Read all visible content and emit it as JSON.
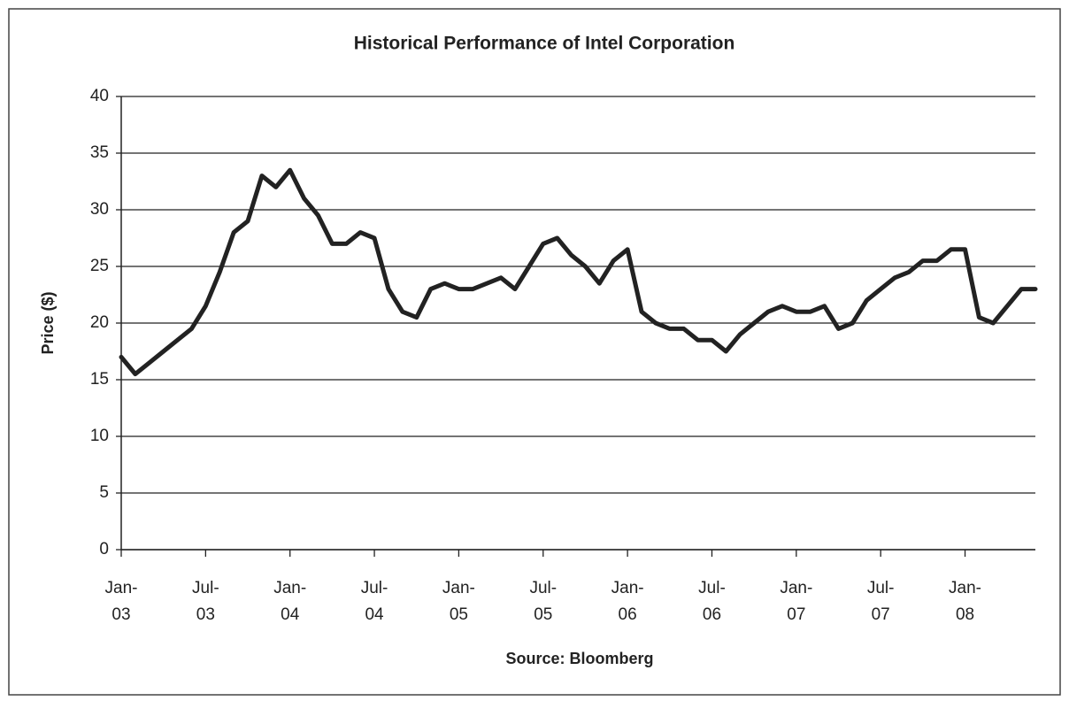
{
  "chart_data": {
    "type": "line",
    "title": "Historical Performance of Intel Corporation",
    "y_label": "Price ($)",
    "x_label": "Source: Bloomberg",
    "x": [
      "2003-01",
      "2003-02",
      "2003-03",
      "2003-04",
      "2003-05",
      "2003-06",
      "2003-07",
      "2003-08",
      "2003-09",
      "2003-10",
      "2003-11",
      "2003-12",
      "2004-01",
      "2004-02",
      "2004-03",
      "2004-04",
      "2004-05",
      "2004-06",
      "2004-07",
      "2004-08",
      "2004-09",
      "2004-10",
      "2004-11",
      "2004-12",
      "2005-01",
      "2005-02",
      "2005-03",
      "2005-04",
      "2005-05",
      "2005-06",
      "2005-07",
      "2005-08",
      "2005-09",
      "2005-10",
      "2005-11",
      "2005-12",
      "2006-01",
      "2006-02",
      "2006-03",
      "2006-04",
      "2006-05",
      "2006-06",
      "2006-07",
      "2006-08",
      "2006-09",
      "2006-10",
      "2006-11",
      "2006-12",
      "2007-01",
      "2007-02",
      "2007-03",
      "2007-04",
      "2007-05",
      "2007-06",
      "2007-07",
      "2007-08",
      "2007-09",
      "2007-10",
      "2007-11",
      "2007-12",
      "2008-01",
      "2008-02",
      "2008-03",
      "2008-04",
      "2008-05",
      "2008-06"
    ],
    "series": [
      {
        "name": "Intel",
        "color": "#222222",
        "values": [
          17,
          15.5,
          16.5,
          17.5,
          18.5,
          19.5,
          21.5,
          24.5,
          28,
          29,
          33,
          32,
          33.5,
          31,
          29.5,
          27,
          27,
          28,
          27.5,
          23,
          21,
          20.5,
          23,
          23.5,
          23,
          23,
          23.5,
          24,
          23,
          25,
          27,
          27.5,
          26,
          25,
          23.5,
          25.5,
          26.5,
          21,
          20,
          19.5,
          19.5,
          18.5,
          18.5,
          17.5,
          19,
          20,
          21,
          21.5,
          21,
          21,
          21.5,
          19.5,
          20,
          22,
          23,
          24,
          24.5,
          25.5,
          25.5,
          26.5,
          26.5,
          20.5,
          20,
          21.5,
          23,
          23
        ]
      }
    ],
    "xlim": [
      "2003-01",
      "2008-06"
    ],
    "xticks": [
      {
        "value": "2003-01",
        "label": [
          "Jan-",
          "03"
        ]
      },
      {
        "value": "2003-07",
        "label": [
          "Jul-",
          "03"
        ]
      },
      {
        "value": "2004-01",
        "label": [
          "Jan-",
          "04"
        ]
      },
      {
        "value": "2004-07",
        "label": [
          "Jul-",
          "04"
        ]
      },
      {
        "value": "2005-01",
        "label": [
          "Jan-",
          "05"
        ]
      },
      {
        "value": "2005-07",
        "label": [
          "Jul-",
          "05"
        ]
      },
      {
        "value": "2006-01",
        "label": [
          "Jan-",
          "06"
        ]
      },
      {
        "value": "2006-07",
        "label": [
          "Jul-",
          "06"
        ]
      },
      {
        "value": "2007-01",
        "label": [
          "Jan-",
          "07"
        ]
      },
      {
        "value": "2007-07",
        "label": [
          "Jul-",
          "07"
        ]
      },
      {
        "value": "2008-01",
        "label": [
          "Jan-",
          "08"
        ]
      }
    ],
    "ylim": [
      0,
      40
    ],
    "yticks": [
      0,
      5,
      10,
      15,
      20,
      25,
      30,
      35,
      40
    ],
    "grid": true
  }
}
